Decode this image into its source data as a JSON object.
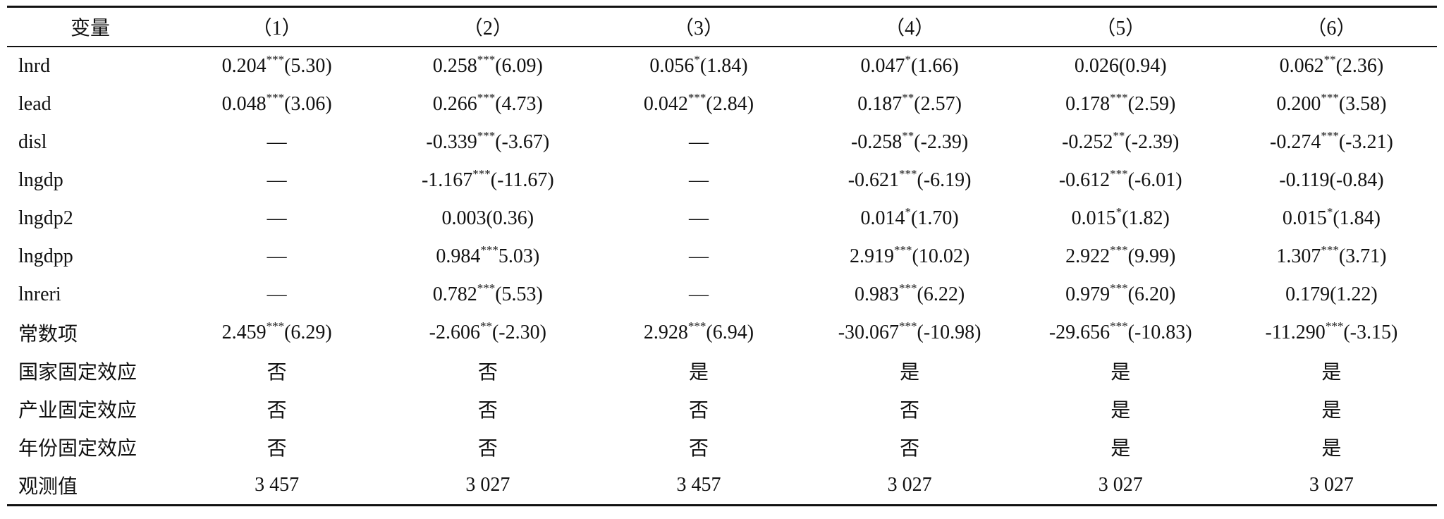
{
  "table": {
    "header": [
      "变量",
      "（1）",
      "（2）",
      "（3）",
      "（4）",
      "（5）",
      "（6）"
    ],
    "rows": [
      [
        "lnrd",
        {
          "coef": "0.204",
          "sup": "***",
          "t": "(5.30)"
        },
        {
          "coef": "0.258",
          "sup": "***",
          "t": "(6.09)"
        },
        {
          "coef": "0.056",
          "sup": "*",
          "t": "(1.84)"
        },
        {
          "coef": "0.047",
          "sup": "*",
          "t": "(1.66)"
        },
        "0.026(0.94)",
        {
          "coef": "0.062",
          "sup": "**",
          "t": "(2.36)"
        }
      ],
      [
        "lead",
        {
          "coef": "0.048",
          "sup": "***",
          "t": "(3.06)"
        },
        {
          "coef": "0.266",
          "sup": "***",
          "t": "(4.73)"
        },
        {
          "coef": "0.042",
          "sup": "***",
          "t": "(2.84)"
        },
        {
          "coef": "0.187",
          "sup": "**",
          "t": "(2.57)"
        },
        {
          "coef": "0.178",
          "sup": "***",
          "t": "(2.59)"
        },
        {
          "coef": "0.200",
          "sup": "***",
          "t": "(3.58)"
        }
      ],
      [
        "disl",
        "—",
        {
          "coef": "-0.339",
          "sup": "***",
          "t": "(-3.67)"
        },
        "—",
        {
          "coef": "-0.258",
          "sup": "**",
          "t": "(-2.39)"
        },
        {
          "coef": "-0.252",
          "sup": "**",
          "t": "(-2.39)"
        },
        {
          "coef": "-0.274",
          "sup": "***",
          "t": "(-3.21)"
        }
      ],
      [
        "lngdp",
        "—",
        {
          "coef": "-1.167",
          "sup": "***",
          "t": "(-11.67)"
        },
        "—",
        {
          "coef": "-0.621",
          "sup": "***",
          "t": "(-6.19)"
        },
        {
          "coef": "-0.612",
          "sup": "***",
          "t": "(-6.01)"
        },
        "-0.119(-0.84)"
      ],
      [
        "lngdp2",
        "—",
        "0.003(0.36)",
        "—",
        {
          "coef": "0.014",
          "sup": "*",
          "t": "(1.70)"
        },
        {
          "coef": "0.015",
          "sup": "*",
          "t": "(1.82)"
        },
        {
          "coef": "0.015",
          "sup": "*",
          "t": "(1.84)"
        }
      ],
      [
        "lngdpp",
        "—",
        {
          "coef": "0.984",
          "sup": "***",
          "t": "5.03)"
        },
        "—",
        {
          "coef": "2.919",
          "sup": "***",
          "t": "(10.02)"
        },
        {
          "coef": "2.922",
          "sup": "***",
          "t": "(9.99)"
        },
        {
          "coef": "1.307",
          "sup": "***",
          "t": "(3.71)"
        }
      ],
      [
        "lnreri",
        "—",
        {
          "coef": "0.782",
          "sup": "***",
          "t": "(5.53)"
        },
        "—",
        {
          "coef": "0.983",
          "sup": "***",
          "t": "(6.22)"
        },
        {
          "coef": "0.979",
          "sup": "***",
          "t": "(6.20)"
        },
        "0.179(1.22)"
      ],
      [
        "常数项",
        {
          "coef": "2.459",
          "sup": "***",
          "t": "(6.29)"
        },
        {
          "coef": "-2.606",
          "sup": "**",
          "t": "(-2.30)"
        },
        {
          "coef": "2.928",
          "sup": "***",
          "t": "(6.94)"
        },
        {
          "coef": "-30.067",
          "sup": "***",
          "t": "(-10.98)"
        },
        {
          "coef": "-29.656",
          "sup": "***",
          "t": "(-10.83)"
        },
        {
          "coef": "-11.290",
          "sup": "***",
          "t": "(-3.15)"
        }
      ],
      [
        "国家固定效应",
        "否",
        "否",
        "是",
        "是",
        "是",
        "是"
      ],
      [
        "产业固定效应",
        "否",
        "否",
        "否",
        "否",
        "是",
        "是"
      ],
      [
        "年份固定效应",
        "否",
        "否",
        "否",
        "否",
        "是",
        "是"
      ],
      [
        "观测值",
        "3 457",
        "3 027",
        "3 457",
        "3 027",
        "3 027",
        "3 027"
      ]
    ]
  }
}
